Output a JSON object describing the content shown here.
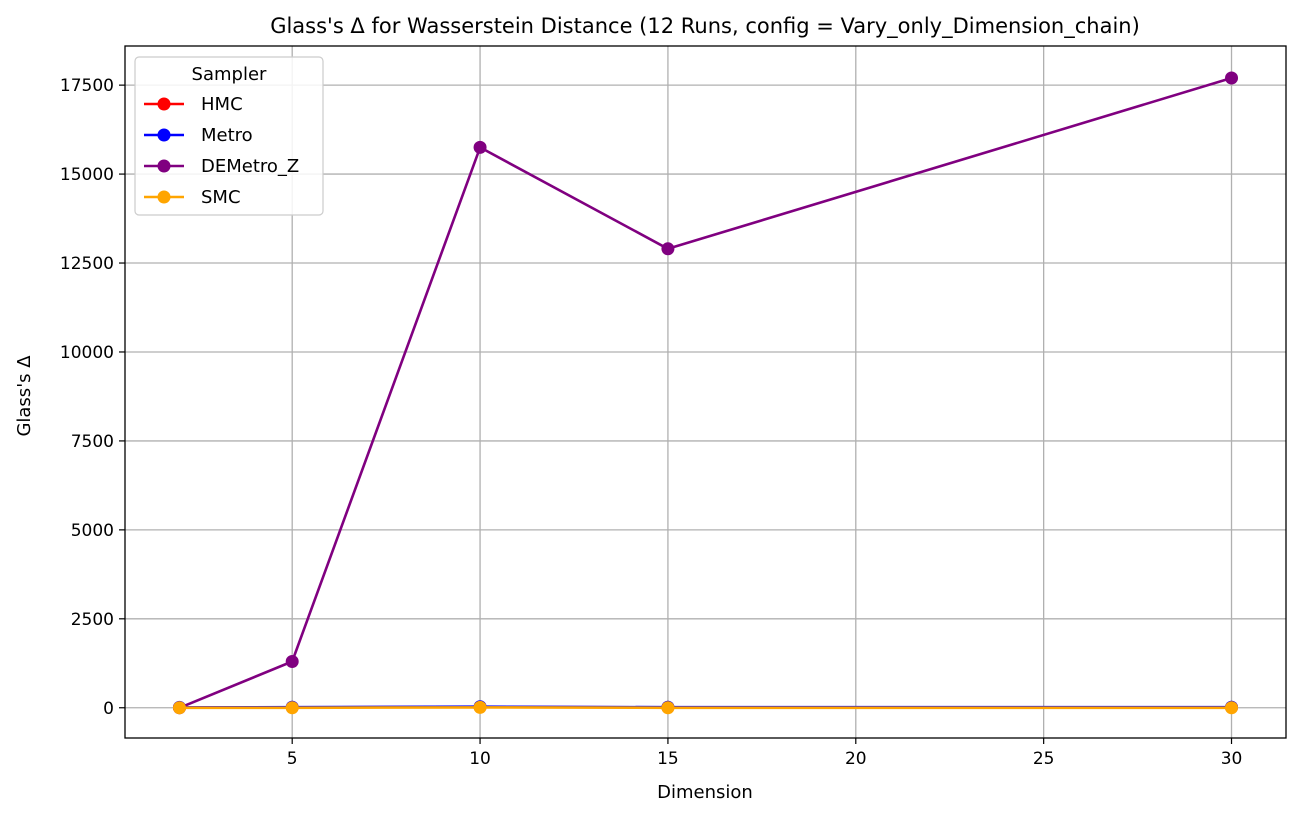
{
  "chart_data": {
    "type": "line",
    "title": "Glass's Δ for Wasserstein Distance (12 Runs, config = Vary_only_Dimension_chain)",
    "xlabel": "Dimension",
    "ylabel": "Glass's Δ",
    "xlim": [
      0.55,
      31.45
    ],
    "ylim": [
      -850,
      18600
    ],
    "xticks": [
      5,
      10,
      15,
      20,
      25,
      30
    ],
    "yticks": [
      0,
      2500,
      5000,
      7500,
      10000,
      12500,
      15000,
      17500
    ],
    "grid": true,
    "legend": {
      "title": "Sampler",
      "placement": "upper-left"
    },
    "x": [
      2,
      5,
      10,
      15,
      30
    ],
    "series": [
      {
        "name": "HMC",
        "color": "#ff0000",
        "values": [
          5,
          10,
          20,
          10,
          10
        ]
      },
      {
        "name": "Metro",
        "color": "#0000ff",
        "values": [
          10,
          15,
          30,
          15,
          15
        ]
      },
      {
        "name": "DEMetro_Z",
        "color": "#800080",
        "values": [
          0,
          1300,
          15750,
          12900,
          17700
        ]
      },
      {
        "name": "SMC",
        "color": "#ffa500",
        "values": [
          0,
          0,
          10,
          0,
          0
        ]
      }
    ]
  }
}
